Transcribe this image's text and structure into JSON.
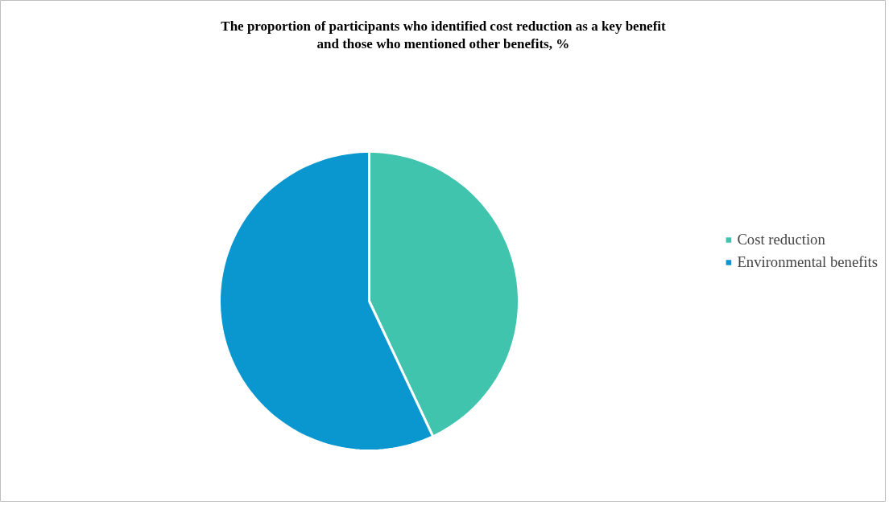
{
  "chart_data": {
    "type": "pie",
    "title": "The proportion of participants who identified cost reduction as a key benefit and those who mentioned other benefits, %",
    "categories": [
      "Cost reduction",
      "Environmental benefits"
    ],
    "values": [
      43,
      57
    ],
    "colors": [
      "#40c4ad",
      "#0a97d0"
    ],
    "legend": "right"
  }
}
